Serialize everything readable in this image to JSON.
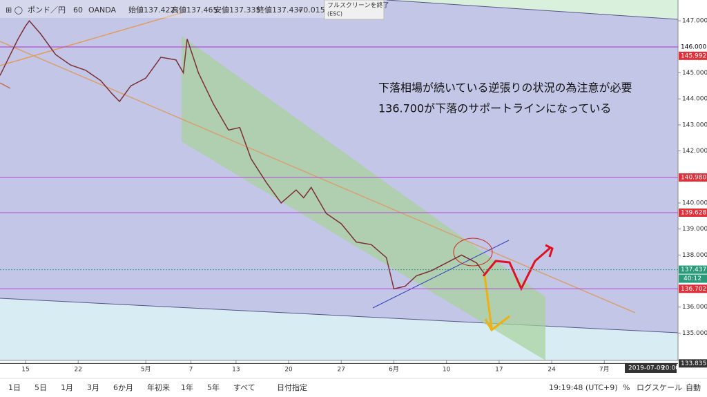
{
  "header": {
    "symbol": "ポンド／円",
    "interval": "60",
    "source": "OANDA",
    "ohlc": [
      {
        "label": "始値",
        "value": "137.422"
      },
      {
        "label": "高値",
        "value": "137.465"
      },
      {
        "label": "安値",
        "value": "137.335"
      },
      {
        "label": "終値",
        "value": "137.437"
      }
    ],
    "change": "+0.015",
    "tooltip": "フルスクリーンを終了",
    "tooltip_key": "(ESC)"
  },
  "chart_data": {
    "type": "line",
    "annotations": [
      "下落相場が続いている逆張りの状況の為注意が必要",
      "136.700が下落のサポートラインになっている"
    ],
    "x": [
      -3.4,
      -1,
      0,
      0.5,
      2,
      4,
      6,
      8,
      10,
      11.5,
      12.5,
      14,
      16,
      18,
      20,
      21,
      21.5,
      23,
      25,
      27,
      28.5,
      30,
      32,
      34,
      36,
      37,
      38,
      40,
      42,
      44,
      46,
      48,
      49,
      50.5,
      52,
      54,
      56,
      58,
      60,
      61
    ],
    "values": [
      144.9,
      146.3,
      146.8,
      147.0,
      146.5,
      145.7,
      145.3,
      145.1,
      144.7,
      144.2,
      143.9,
      144.5,
      144.8,
      145.6,
      145.5,
      145.0,
      146.3,
      145.0,
      143.8,
      142.8,
      142.9,
      141.7,
      140.8,
      140.0,
      140.5,
      140.2,
      140.6,
      139.6,
      139.2,
      138.5,
      138.4,
      137.9,
      136.7,
      136.8,
      137.2,
      137.4,
      137.7,
      138.0,
      137.7,
      137.3
    ],
    "color": "#7a2f35",
    "xlim": [
      -3.4,
      86.8
    ],
    "ylim": [
      133.95,
      147.8
    ],
    "xticks": [
      {
        "value": 0,
        "label": "15"
      },
      {
        "value": 7,
        "label": "22"
      },
      {
        "value": 16,
        "label": "5月"
      },
      {
        "value": 22,
        "label": "7"
      },
      {
        "value": 28,
        "label": "13"
      },
      {
        "value": 35,
        "label": "20"
      },
      {
        "value": 42,
        "label": "27"
      },
      {
        "value": 49,
        "label": "6月"
      },
      {
        "value": 56,
        "label": "10"
      },
      {
        "value": 63,
        "label": "17"
      },
      {
        "value": 70,
        "label": "24"
      },
      {
        "value": 77,
        "label": "7月"
      }
    ],
    "yticks": [
      {
        "value": 147,
        "label": "147.000"
      },
      {
        "value": 145,
        "label": "145.000"
      },
      {
        "value": 144,
        "label": "144.000"
      },
      {
        "value": 143,
        "label": "143.000"
      },
      {
        "value": 142,
        "label": "142.000"
      },
      {
        "value": 140,
        "label": "140.000"
      },
      {
        "value": 139,
        "label": "139.000"
      },
      {
        "value": 138,
        "label": "138.000"
      },
      {
        "value": 136,
        "label": "136.000"
      },
      {
        "value": 135,
        "label": "135.000"
      }
    ],
    "levels": [
      {
        "value": 146,
        "label": "146.000",
        "color": "#b44bd6",
        "text_color": "#000000",
        "label_bg": "#ffffff"
      },
      {
        "value": 145.992,
        "label": "145.992",
        "color": "#b44bd6",
        "text_color": "#ffffff",
        "label_bg": "#e0303a"
      },
      {
        "value": 140.98,
        "label": "140.980",
        "color": "#b44bd6",
        "text_color": "#ffffff",
        "label_bg": "#e0303a"
      },
      {
        "value": 139.628,
        "label": "139.628",
        "color": "#b44bd6",
        "text_color": "#ffffff",
        "label_bg": "#e0303a"
      },
      {
        "value": 137.437,
        "label": "137.437",
        "color": "#2a9a8a",
        "text_color": "#ffffff",
        "label_bg": "#2a9a7a",
        "dashed": true
      },
      {
        "value": 136.702,
        "label": "136.702",
        "color": "#b44bd6",
        "text_color": "#ffffff",
        "label_bg": "#e0303a"
      },
      {
        "value": 133.835,
        "label": "133.835",
        "color": "#333333",
        "text_color": "#ffffff",
        "label_bg": "#333333"
      }
    ],
    "countdown": "40:12",
    "crosshair_date": "2019-07-09",
    "crosshair_time": "20:00"
  },
  "toolbar": {
    "ranges": [
      "1日",
      "5日",
      "1月",
      "3月",
      "6か月",
      "年初来",
      "1年",
      "5年",
      "すべて"
    ],
    "custom": "日付指定",
    "clock": "19:19:48 (UTC+9)",
    "percent": "%",
    "log": "ログスケール",
    "auto": "自動"
  }
}
